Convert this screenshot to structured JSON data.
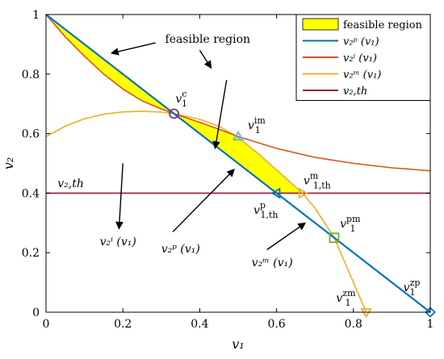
{
  "chart_data": {
    "type": "line",
    "xlabel": "v₁",
    "ylabel": "v₂",
    "xlim": [
      0,
      1
    ],
    "ylim": [
      0,
      1
    ],
    "xticks": [
      "0",
      "0.2",
      "0.4",
      "0.6",
      "0.8",
      "1"
    ],
    "yticks": [
      "0",
      "0.2",
      "0.4",
      "0.6",
      "0.8",
      "1"
    ],
    "grid": false,
    "legend_position": "top-right",
    "series": [
      {
        "name": "v₂ᵖ (v₁)",
        "color": "#0072BD",
        "x": [
          0,
          1
        ],
        "y": [
          1,
          0
        ]
      },
      {
        "name": "v₂ⁱ (v₁)",
        "color": "#D95319",
        "x": [
          0,
          0.05,
          0.1,
          0.15,
          0.2,
          0.25,
          0.3,
          0.333,
          0.4,
          0.45,
          0.5,
          0.6,
          0.7,
          0.8,
          0.9,
          1.0
        ],
        "y": [
          1.0,
          0.925,
          0.86,
          0.8,
          0.75,
          0.71,
          0.683,
          0.667,
          0.638,
          0.615,
          0.59,
          0.55,
          0.52,
          0.5,
          0.485,
          0.475
        ]
      },
      {
        "name": "v₂ᵐ (v₁)",
        "color": "#EDB120",
        "x": [
          0,
          0.05,
          0.1,
          0.15,
          0.2,
          0.25,
          0.3,
          0.333,
          0.4,
          0.45,
          0.5,
          0.55,
          0.6,
          0.65,
          0.667,
          0.7,
          0.75,
          0.8,
          0.833
        ],
        "y": [
          0.59,
          0.625,
          0.65,
          0.665,
          0.673,
          0.675,
          0.672,
          0.667,
          0.648,
          0.625,
          0.587,
          0.535,
          0.478,
          0.42,
          0.4,
          0.35,
          0.25,
          0.1,
          0.0
        ]
      },
      {
        "name": "v₂,th",
        "color": "#A2142F",
        "x": [
          0,
          1
        ],
        "y": [
          0.4,
          0.4
        ]
      }
    ],
    "feasible_region": {
      "name": "feasible region",
      "color": "#FFFF00",
      "parts": [
        {
          "upper_x": [
            0,
            0.05,
            0.1,
            0.15,
            0.2,
            0.25,
            0.3,
            0.333
          ],
          "upper_y": [
            1.0,
            0.925,
            0.86,
            0.8,
            0.75,
            0.71,
            0.683,
            0.667
          ]
        },
        {
          "upper_x": [
            0.333,
            0.4,
            0.45,
            0.5,
            0.55,
            0.6,
            0.65,
            0.667
          ],
          "upper_y": [
            0.667,
            0.638,
            0.615,
            0.587,
            0.535,
            0.478,
            0.42,
            0.4
          ],
          "lower_x": [
            0.6,
            0.667
          ],
          "lower_y": [
            0.4,
            0.4
          ]
        }
      ]
    },
    "markers": [
      {
        "name": "v₁ᶜ",
        "x": 0.333,
        "y": 0.667,
        "shape": "circle",
        "color": "#7E2F8E",
        "label": "v",
        "sub": "1",
        "sup": "c",
        "lx": 0.337,
        "ly": 0.705
      },
      {
        "name": "v₁ⁱᵐ",
        "x": 0.5,
        "y": 0.59,
        "shape": "triangle-up",
        "color": "#4DBEEE",
        "label": "v",
        "sub": "1",
        "sup": "im",
        "lx": 0.525,
        "ly": 0.615
      },
      {
        "name": "v₁,thᵐ",
        "x": 0.667,
        "y": 0.4,
        "shape": "triangle-right",
        "color": "#EDB120",
        "label": "v",
        "sub": "1,th",
        "sup": "m",
        "lx": 0.67,
        "ly": 0.43
      },
      {
        "name": "v₁,thᵖ",
        "x": 0.6,
        "y": 0.4,
        "shape": "triangle-left",
        "color": "#0072BD",
        "label": "v",
        "sub": "1,th",
        "sup": "p",
        "lx": 0.54,
        "ly": 0.33
      },
      {
        "name": "v₁ᵖᵐ",
        "x": 0.75,
        "y": 0.25,
        "shape": "square",
        "color": "#77AC30",
        "label": "v",
        "sub": "1",
        "sup": "pm",
        "lx": 0.765,
        "ly": 0.285
      },
      {
        "name": "v₁ᶻᵐ",
        "x": 0.833,
        "y": 0.0,
        "shape": "triangle-down",
        "color": "#EDB120",
        "label": "v",
        "sub": "1",
        "sup": "zm",
        "lx": 0.755,
        "ly": 0.035
      },
      {
        "name": "v₁ᶻᵖ",
        "x": 1.0,
        "y": 0.0,
        "shape": "diamond",
        "color": "#0072BD",
        "label": "v",
        "sub": "1",
        "sup": "zp",
        "lx": 0.93,
        "ly": 0.07
      }
    ],
    "annotations": [
      {
        "name": "feasible-region-annotation",
        "text": "feasible region",
        "tx": 0.31,
        "ty": 0.905,
        "style": "plain",
        "arrows": [
          {
            "x1": 0.285,
            "y1": 0.905,
            "x2": 0.17,
            "y2": 0.87
          },
          {
            "x1": 0.4,
            "y1": 0.88,
            "x2": 0.43,
            "y2": 0.82
          }
        ]
      },
      {
        "name": "v2p-annotation",
        "text": "v₂ᵖ (v₁)",
        "tx": 0.3,
        "ty": 0.2,
        "style": "italic",
        "arrows": [
          {
            "x1": 0.47,
            "y1": 0.78,
            "x2": 0.44,
            "y2": 0.55
          },
          {
            "x1": 0.33,
            "y1": 0.27,
            "x2": 0.49,
            "y2": 0.48
          }
        ]
      },
      {
        "name": "v2i-annotation",
        "text": "v₂ⁱ (v₁)",
        "tx": 0.14,
        "ty": 0.225,
        "style": "italic",
        "arrows": [
          {
            "x1": 0.2,
            "y1": 0.5,
            "x2": 0.19,
            "y2": 0.28
          }
        ]
      },
      {
        "name": "v2m-annotation",
        "text": "v₂ᵐ (v₁)",
        "tx": 0.535,
        "ty": 0.155,
        "style": "italic",
        "arrows": [
          {
            "x1": 0.575,
            "y1": 0.21,
            "x2": 0.675,
            "y2": 0.3
          }
        ]
      },
      {
        "name": "v2th-annotation",
        "text": "v₂,th",
        "tx": 0.03,
        "ty": 0.42,
        "style": "italic",
        "arrows": []
      }
    ]
  },
  "legend": {
    "items": [
      {
        "label": "feasible region",
        "kind": "patch",
        "color": "#FFFF00"
      },
      {
        "label": "v₂ᵖ (v₁)",
        "kind": "line",
        "color": "#0072BD"
      },
      {
        "label": "v₂ⁱ (v₁)",
        "kind": "line",
        "color": "#D95319"
      },
      {
        "label": "v₂ᵐ (v₁)",
        "kind": "line",
        "color": "#EDB120"
      },
      {
        "label": "v₂,th",
        "kind": "line",
        "color": "#A2142F"
      }
    ]
  }
}
